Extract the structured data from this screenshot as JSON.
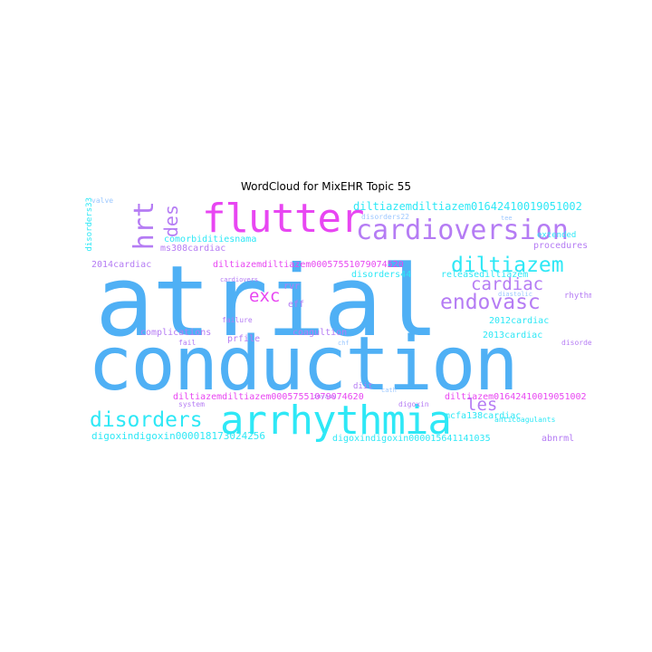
{
  "title": "WordCloud for MixEHR Topic 55",
  "words": {
    "atrial": "atrial",
    "conduction": "conduction",
    "arrhythmia": "arrhythmia",
    "flutter": "flutter",
    "cardioversion": "cardioversion",
    "diltiazem": "diltiazem",
    "disorders": "disorders",
    "endovasc": "endovasc",
    "cardiac": "cardiac",
    "les": "les",
    "hrt": "hrt",
    "des": "des",
    "exc": "exc",
    "d1": "diltiazemdiltiazem01642410019051002",
    "d2": "diltiazemdiltiazem00057551079074520",
    "d3": "diltiazemdiltiazem00057551079074620",
    "d4": "diltiazem01642410019051002",
    "dig1": "digoxindigoxin000018173024256",
    "dig2": "digoxindigoxin000015641141035",
    "comorb": "comorbiditiesnama",
    "ms308": "ms308cardiac",
    "disorders33": "disorders33",
    "disorders44": "disorders44",
    "c2014": "2014cardiac",
    "c2013": "2013cardiac",
    "c2012": "2012cardiac",
    "complications": "complications",
    "prfile": "prfile",
    "coagulation": "coagultion",
    "releasedil": "releasediltiazem",
    "procedures": "procedures",
    "rhythm": "rhythm",
    "extended": "extended",
    "mcfa": "mcfa138cardiac",
    "abnrml": "abnrml",
    "anticoag": "anticoagulants",
    "digoxin": "digoxin",
    "rvr": "rvr",
    "eff": "eff",
    "failure": "failure",
    "fail": "fail",
    "system": "system",
    "diit": "diit",
    "invasv": "invasv",
    "cardiovers": "cardiovers",
    "valve": "valve",
    "disorders22": "disorders22",
    "disorders24": "disorders24",
    "diastolic": "diastolic",
    "cath": "cath",
    "tee": "tee",
    "chf": "chf"
  }
}
